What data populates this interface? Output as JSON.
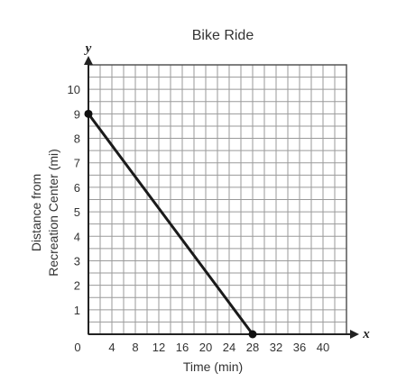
{
  "chart_data": {
    "type": "line",
    "title": "Bike Ride",
    "xlabel": "Time (min)",
    "ylabel_lines": [
      "Distance from",
      "Recreation Center (mi)"
    ],
    "x_axis_name": "x",
    "y_axis_name": "y",
    "xlim": [
      0,
      44
    ],
    "ylim": [
      0,
      11
    ],
    "x_ticks": [
      4,
      8,
      12,
      16,
      20,
      24,
      28,
      32,
      36,
      40
    ],
    "y_ticks": [
      1,
      2,
      3,
      4,
      5,
      6,
      7,
      8,
      9,
      10
    ],
    "origin_label": "0",
    "grid": true,
    "series": [
      {
        "points": [
          {
            "x": 0,
            "y": 9
          },
          {
            "x": 28,
            "y": 0
          }
        ]
      }
    ]
  }
}
